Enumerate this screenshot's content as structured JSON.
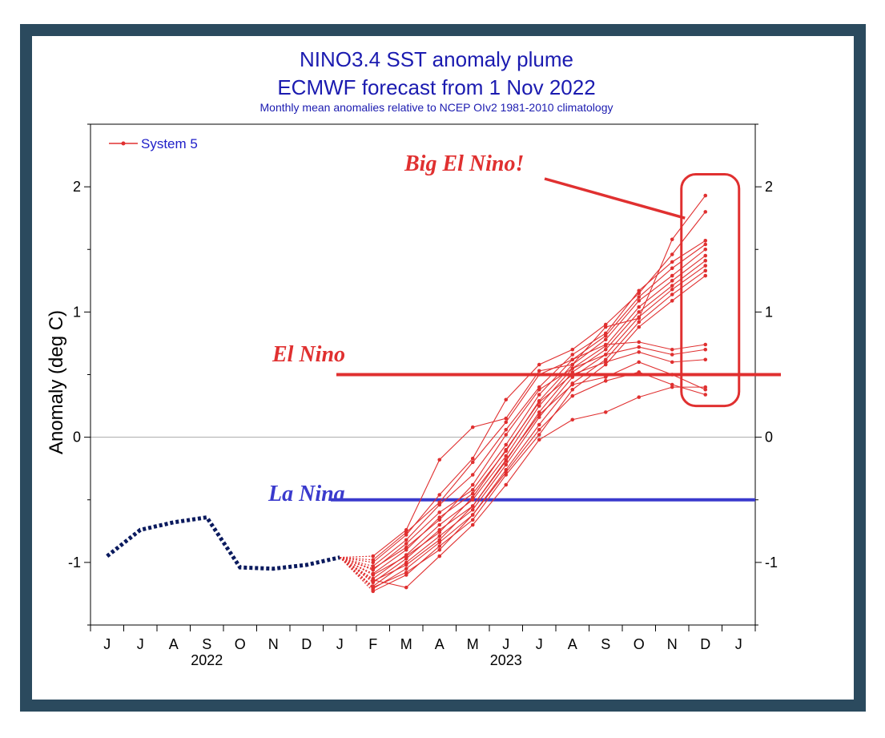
{
  "chart_data": {
    "type": "line",
    "title": "NINO3.4 SST anomaly plume",
    "subtitle": "ECMWF forecast from 1 Nov 2022",
    "note": "Monthly mean anomalies relative to NCEP OIv2 1981-2010 climatology",
    "ylabel": "Anomaly (deg C)",
    "ylim": [
      -1.5,
      2.5
    ],
    "yticks": [
      -1,
      0,
      1,
      2
    ],
    "ytick_labels": [
      "-1",
      "0",
      "1",
      "2"
    ],
    "xtick_labels": [
      "J",
      "J",
      "A",
      "S",
      "O",
      "N",
      "D",
      "J",
      "F",
      "M",
      "A",
      "M",
      "J",
      "J",
      "A",
      "S",
      "O",
      "N",
      "D",
      "J"
    ],
    "year_labels": [
      "2022",
      "2023"
    ],
    "legend": {
      "label": "System 5",
      "placement": "top-left"
    },
    "colors": {
      "observed": "#0a1a5e",
      "forecast": "#e03030",
      "el_nino": "#e03030",
      "la_nina": "#3a3acd",
      "title": "#1b1bb0"
    },
    "observed": {
      "months": [
        0,
        1,
        2,
        3,
        4,
        5,
        6,
        7
      ],
      "values": [
        -0.95,
        -0.74,
        -0.68,
        -0.64,
        -1.04,
        -1.05,
        -1.02,
        -0.96
      ]
    },
    "forecast_start": {
      "month": 7,
      "value": -0.96
    },
    "ensemble": {
      "months": [
        8,
        9,
        10,
        11,
        12,
        13,
        14,
        15,
        16,
        17,
        18
      ],
      "members": [
        [
          -0.95,
          -0.74,
          -0.18,
          0.08,
          0.15,
          0.53,
          0.58,
          0.88,
          0.95,
          1.58,
          1.93
        ],
        [
          -1.0,
          -0.78,
          -0.46,
          -0.17,
          0.3,
          0.58,
          0.7,
          0.9,
          1.15,
          1.46,
          1.8
        ],
        [
          -1.03,
          -0.82,
          -0.54,
          -0.3,
          0.06,
          0.4,
          0.66,
          0.83,
          1.17,
          1.4,
          1.57
        ],
        [
          -1.06,
          -0.85,
          -0.6,
          -0.42,
          -0.06,
          0.34,
          0.62,
          0.81,
          1.12,
          1.35,
          1.54
        ],
        [
          -1.09,
          -0.9,
          -0.64,
          -0.45,
          -0.11,
          0.29,
          0.58,
          0.78,
          1.09,
          1.29,
          1.5
        ],
        [
          -1.13,
          -0.94,
          -0.7,
          -0.5,
          -0.15,
          0.25,
          0.55,
          0.73,
          1.04,
          1.25,
          1.45
        ],
        [
          -1.16,
          -0.97,
          -0.74,
          -0.55,
          -0.19,
          0.2,
          0.52,
          0.7,
          1.0,
          1.21,
          1.41
        ],
        [
          -1.19,
          -1.0,
          -0.79,
          -0.58,
          -0.22,
          0.16,
          0.48,
          0.66,
          0.96,
          1.18,
          1.37
        ],
        [
          -1.21,
          -1.05,
          -0.84,
          -0.62,
          -0.26,
          0.1,
          0.43,
          0.62,
          0.92,
          1.14,
          1.33
        ],
        [
          -1.23,
          -1.1,
          -0.87,
          -0.66,
          -0.3,
          0.02,
          0.38,
          0.58,
          0.88,
          1.09,
          1.29
        ],
        [
          -0.98,
          -0.76,
          -0.52,
          -0.2,
          0.12,
          0.5,
          0.62,
          0.74,
          0.76,
          0.7,
          0.74
        ],
        [
          -1.05,
          -0.88,
          -0.66,
          -0.38,
          0.02,
          0.38,
          0.55,
          0.66,
          0.72,
          0.66,
          0.7
        ],
        [
          -1.1,
          -0.95,
          -0.76,
          -0.48,
          -0.1,
          0.28,
          0.5,
          0.6,
          0.68,
          0.6,
          0.62
        ],
        [
          -1.15,
          -1.02,
          -0.82,
          -0.55,
          -0.18,
          0.18,
          0.42,
          0.48,
          0.6,
          0.5,
          0.38
        ],
        [
          -1.2,
          -1.08,
          -0.9,
          -0.62,
          -0.28,
          0.06,
          0.33,
          0.45,
          0.52,
          0.42,
          0.34
        ],
        [
          -1.14,
          -1.2,
          -0.95,
          -0.7,
          -0.38,
          -0.02,
          0.14,
          0.2,
          0.32,
          0.4,
          0.4
        ]
      ]
    },
    "thresholds": {
      "el_nino": 0.5,
      "la_nina": -0.5
    }
  },
  "annotations": {
    "big_el_nino": "Big El Nino!",
    "el_nino": "El Nino",
    "la_nina": "La Nina"
  }
}
